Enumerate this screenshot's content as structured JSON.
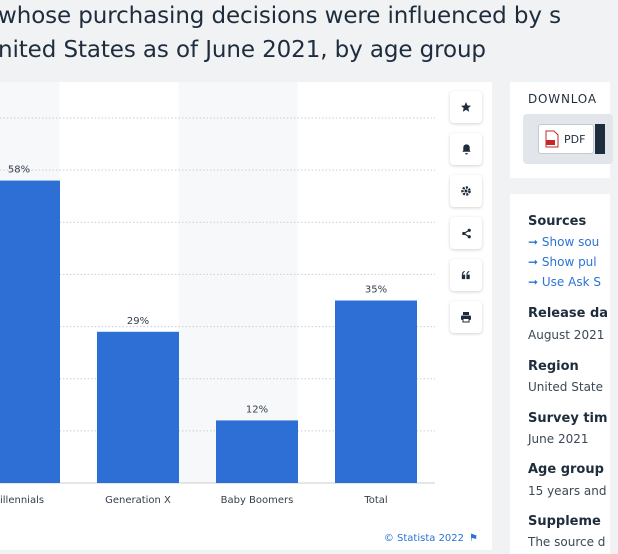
{
  "title": {
    "line1": " whose purchasing decisions were influenced by s",
    "line2": "nited States as of June 2021, by age group"
  },
  "chart_data": {
    "type": "bar",
    "categories": [
      "illennials",
      "Generation X",
      "Baby Boomers",
      "Total"
    ],
    "values": [
      58,
      29,
      12,
      35
    ],
    "labels": [
      "58%",
      "29%",
      "12%",
      "35%"
    ],
    "ylim": [
      0,
      70
    ],
    "grid": true,
    "color": "#2e6fd6"
  },
  "tools": [
    "star-icon",
    "bell-icon",
    "gear-icon",
    "share-icon",
    "quote-icon",
    "print-icon"
  ],
  "copyright": "© Statista 2022",
  "download": {
    "title": "DOWNLOA",
    "pdf_label": "PDF"
  },
  "sidebar": {
    "sources_heading": "Sources",
    "links": [
      "Show sou",
      "Show pul",
      "Use Ask S"
    ],
    "release_heading": "Release da",
    "release_value": "August 2021",
    "region_heading": "Region",
    "region_value": "United State",
    "survey_heading": "Survey tim",
    "survey_value": "June 2021",
    "age_heading": "Age group",
    "age_value": "15 years and",
    "supp_heading": "Suppleme",
    "supp_value": "The source d"
  }
}
